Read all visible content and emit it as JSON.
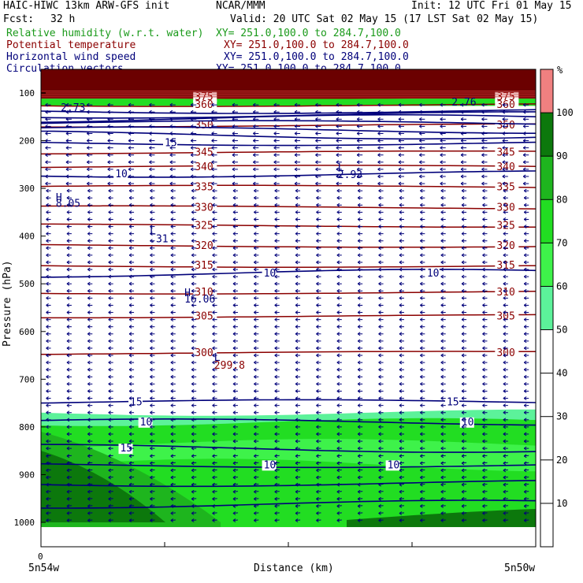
{
  "header": {
    "model": "HAIC-HIWC 13km ARW-GFS init",
    "org": "NCAR/MMM",
    "init": "Init: 12 UTC Fri 01 May 15",
    "fcst_label": "Fcst:",
    "fcst_value": "32 h",
    "valid": "Valid: 20 UTC Sat 02 May 15 (17 LST Sat 02 May 15)"
  },
  "fields": [
    {
      "name": "Relative humidity (w.r.t. water)",
      "xy": "XY= 251.0,100.0 to 284.7,100.0",
      "color": "#1a9a1a"
    },
    {
      "name": "Potential temperature",
      "xy": "XY= 251.0,100.0 to 284.7,100.0",
      "color": "#8b0000"
    },
    {
      "name": "Horizontal wind speed",
      "xy": "XY= 251.0,100.0 to 284.7,100.0",
      "color": "#00007a"
    },
    {
      "name": "Circulation vectors",
      "xy": "XY= 251.0,100.0 to 284.7,100.0",
      "color": "#00007a"
    }
  ],
  "chart_data": {
    "type": "heatmap",
    "ylabel": "Pressure (hPa)",
    "xlabel": "Distance (km)",
    "x_tick_label": "0",
    "x_start_label": "5n54w",
    "x_end_label": "5n50w",
    "y_ticks": [
      100,
      200,
      300,
      400,
      500,
      600,
      700,
      800,
      900,
      1000
    ],
    "ylim": [
      1070,
      80
    ],
    "colorbar": {
      "unit": "%",
      "ticks": [
        10,
        20,
        30,
        40,
        50,
        60,
        70,
        80,
        90,
        100
      ],
      "levels": [
        {
          "from": 50,
          "to": 60,
          "color": "#5cf29a"
        },
        {
          "from": 60,
          "to": 70,
          "color": "#3ef24a"
        },
        {
          "from": 70,
          "to": 80,
          "color": "#22dd22"
        },
        {
          "from": 80,
          "to": 90,
          "color": "#1eb51e"
        },
        {
          "from": 90,
          "to": 100,
          "color": "#0c780c"
        },
        {
          "from": 100,
          "to": 110,
          "color": "#f08080"
        }
      ]
    },
    "theta_contours": [
      {
        "value": "375",
        "p": 108
      },
      {
        "value": "360",
        "p": 125
      },
      {
        "value": "350",
        "p": 168
      },
      {
        "value": "345",
        "p": 225
      },
      {
        "value": "340",
        "p": 255
      },
      {
        "value": "335",
        "p": 297
      },
      {
        "value": "330",
        "p": 340
      },
      {
        "value": "325",
        "p": 378
      },
      {
        "value": "320",
        "p": 420
      },
      {
        "value": "315",
        "p": 462
      },
      {
        "value": "310",
        "p": 518
      },
      {
        "value": "305",
        "p": 568
      },
      {
        "value": "300",
        "p": 645
      }
    ],
    "annotations": [
      {
        "text": "2.73",
        "x_frac": 0.04,
        "p": 130
      },
      {
        "text": "2.76",
        "x_frac": 0.83,
        "p": 118
      },
      {
        "text": "H",
        "x_frac": 0.03,
        "p": 318
      },
      {
        "text": "8.05",
        "x_frac": 0.03,
        "p": 330
      },
      {
        "text": "L",
        "x_frac": 0.22,
        "p": 388
      },
      {
        "text": ".31",
        "x_frac": 0.22,
        "p": 405
      },
      {
        "text": "L",
        "x_frac": 0.6,
        "p": 255
      },
      {
        "text": "2.93",
        "x_frac": 0.6,
        "p": 270
      },
      {
        "text": "H",
        "x_frac": 0.29,
        "p": 518
      },
      {
        "text": "16.06",
        "x_frac": 0.29,
        "p": 531
      },
      {
        "text": "L",
        "x_frac": 0.35,
        "p": 653
      },
      {
        "text": "299.8",
        "x_frac": 0.35,
        "p": 670
      }
    ],
    "wind_contour_labels": [
      "15",
      "10",
      "10",
      "10",
      "15",
      "15",
      "10",
      "10",
      "15",
      "10",
      "10"
    ]
  }
}
